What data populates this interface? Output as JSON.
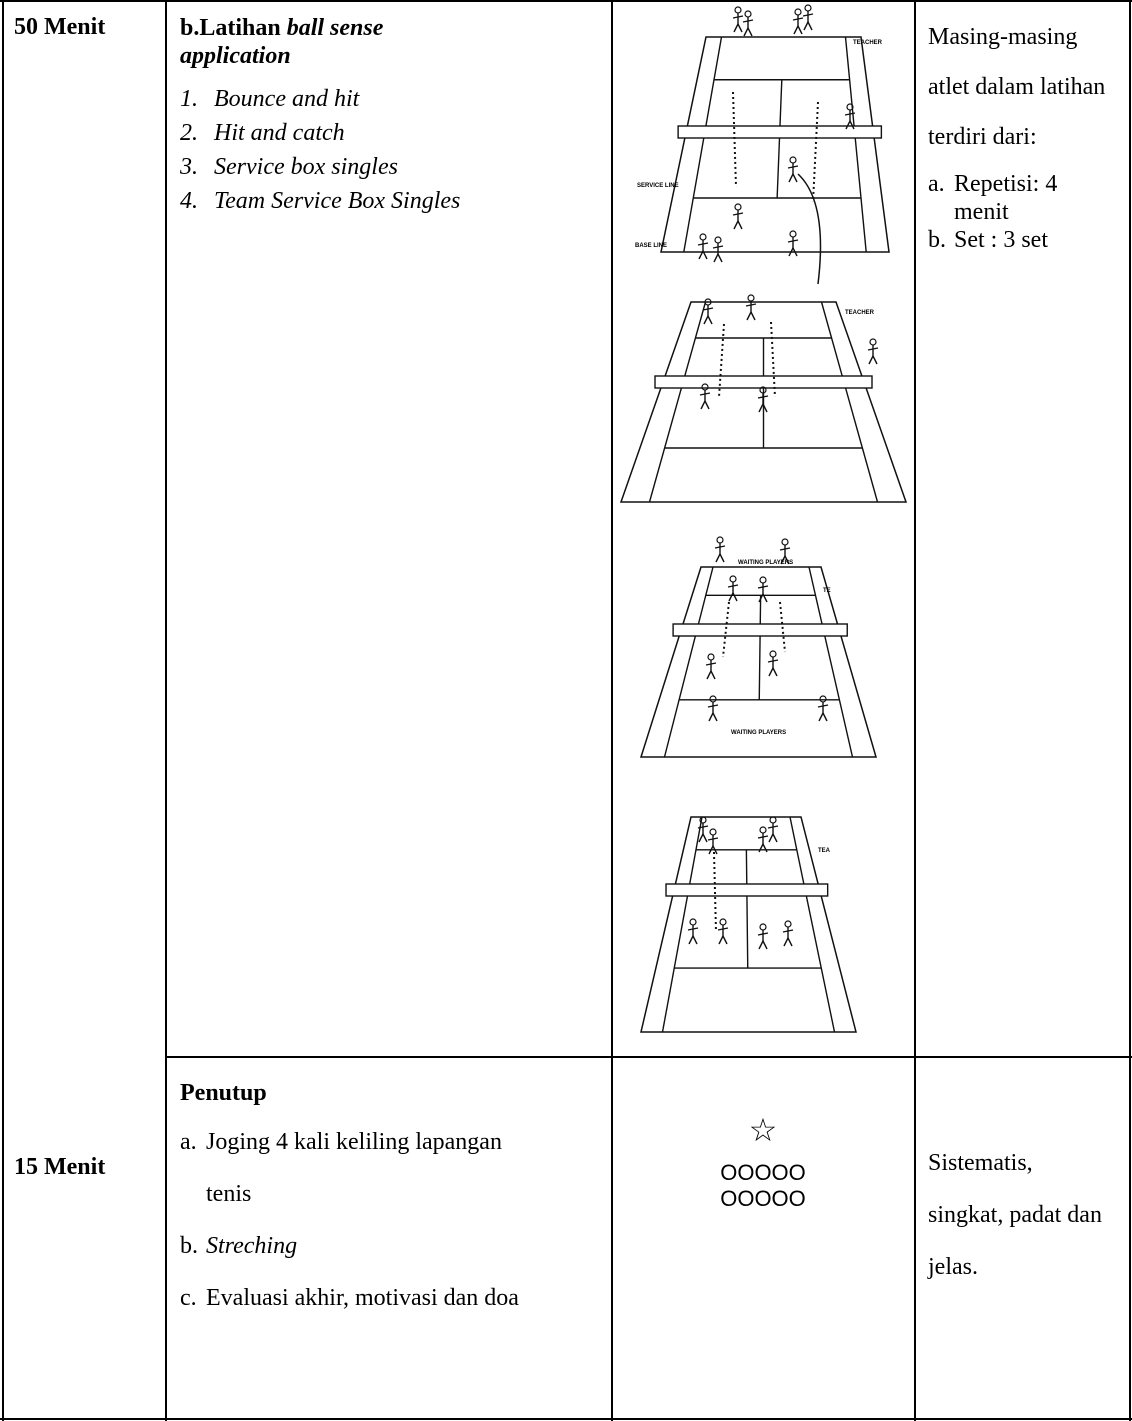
{
  "rows": [
    {
      "time": "50 Menit",
      "activity": {
        "heading_prefix": "b.Latihan ",
        "heading_italic": "ball sense application",
        "items": [
          {
            "marker": "1.",
            "text": "Bounce and hit"
          },
          {
            "marker": "2.",
            "text": "Hit and catch"
          },
          {
            "marker": "3.",
            "text": "Service box singles"
          },
          {
            "marker": "4.",
            "text": "Team Service Box Singles"
          }
        ]
      },
      "diagram": {
        "labels": [
          "TEACHER",
          "SERVICE LINE",
          "BASE LINE",
          "TEACHER",
          "WAITING PLAYERS",
          "TE",
          "WAITING PLAYERS",
          "TEA"
        ]
      },
      "notes": {
        "intro": "Masing-masing atlet dalam latihan terdiri dari:",
        "items": [
          {
            "marker": "a.",
            "text": "Repetisi: 4 menit"
          },
          {
            "marker": "b.",
            "text": "Set : 3 set"
          }
        ]
      }
    },
    {
      "time": "15 Menit",
      "activity": {
        "heading": "Penutup",
        "items": [
          {
            "marker": "a.",
            "text": "Joging 4 kali keliling lapangan tenis"
          },
          {
            "marker": "b.",
            "text": "Streching"
          },
          {
            "marker": "c.",
            "text": "Evaluasi akhir, motivasi dan doa"
          }
        ]
      },
      "formation": {
        "star": "☆",
        "lines": [
          "OOOOO",
          "OOOOO"
        ]
      },
      "notes": {
        "text": "Sistematis, singkat, padat dan jelas."
      }
    }
  ]
}
